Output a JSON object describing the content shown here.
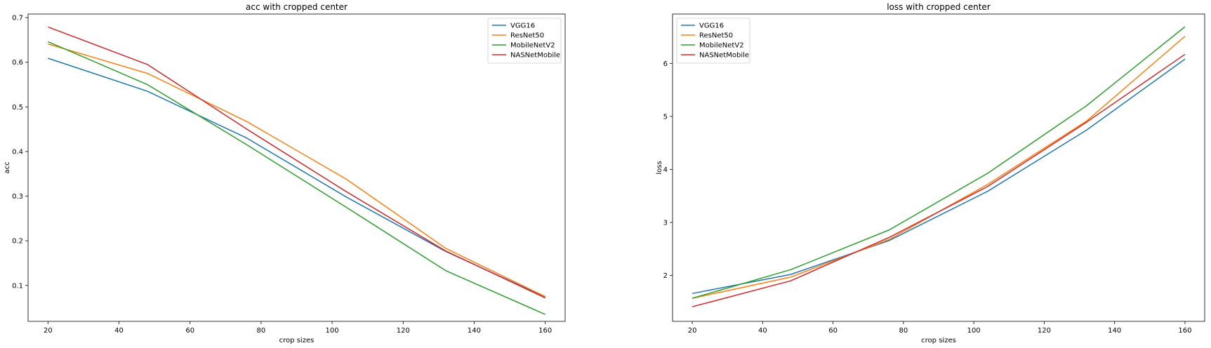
{
  "chart_data": [
    {
      "type": "line",
      "title": "acc with cropped center",
      "xlabel": "crop sizes",
      "ylabel": "acc",
      "x": [
        20,
        48,
        76,
        104,
        132,
        160
      ],
      "xlim": [
        14.4,
        165.6
      ],
      "ylim": [
        0.0195,
        0.708
      ],
      "xticks": [
        20,
        40,
        60,
        80,
        100,
        120,
        140,
        160
      ],
      "yticks": [
        0.1,
        0.2,
        0.3,
        0.4,
        0.5,
        0.6,
        0.7
      ],
      "grid": false,
      "legend_position": "top-right",
      "series": [
        {
          "name": "VGG16",
          "color": "#1f77b4",
          "values": [
            0.609,
            0.535,
            0.43,
            0.298,
            0.176,
            0.074
          ]
        },
        {
          "name": "ResNet50",
          "color": "#ff7f0e",
          "values": [
            0.641,
            0.575,
            0.467,
            0.338,
            0.183,
            0.075
          ]
        },
        {
          "name": "MobileNetV2",
          "color": "#2ca02c",
          "values": [
            0.646,
            0.55,
            0.415,
            0.275,
            0.133,
            0.035
          ]
        },
        {
          "name": "NASNetMobile",
          "color": "#d62728",
          "values": [
            0.679,
            0.595,
            0.45,
            0.31,
            0.177,
            0.072
          ]
        }
      ]
    },
    {
      "type": "line",
      "title": "loss with cropped center",
      "xlabel": "crop sizes",
      "ylabel": "loss",
      "x": [
        20,
        48,
        76,
        104,
        132,
        160
      ],
      "xlim": [
        14.4,
        165.6
      ],
      "ylim": [
        1.135,
        6.93
      ],
      "xticks": [
        20,
        40,
        60,
        80,
        100,
        120,
        140,
        160
      ],
      "yticks": [
        2,
        3,
        4,
        5,
        6
      ],
      "grid": false,
      "legend_position": "top-left",
      "series": [
        {
          "name": "VGG16",
          "color": "#1f77b4",
          "values": [
            1.66,
            2.02,
            2.66,
            3.59,
            4.74,
            6.08
          ]
        },
        {
          "name": "ResNet50",
          "color": "#ff7f0e",
          "values": [
            1.57,
            1.97,
            2.68,
            3.72,
            4.91,
            6.51
          ]
        },
        {
          "name": "MobileNetV2",
          "color": "#2ca02c",
          "values": [
            1.57,
            2.11,
            2.86,
            3.93,
            5.2,
            6.69
          ]
        },
        {
          "name": "NASNetMobile",
          "color": "#d62728",
          "values": [
            1.41,
            1.9,
            2.72,
            3.68,
            4.89,
            6.17
          ]
        }
      ]
    }
  ]
}
